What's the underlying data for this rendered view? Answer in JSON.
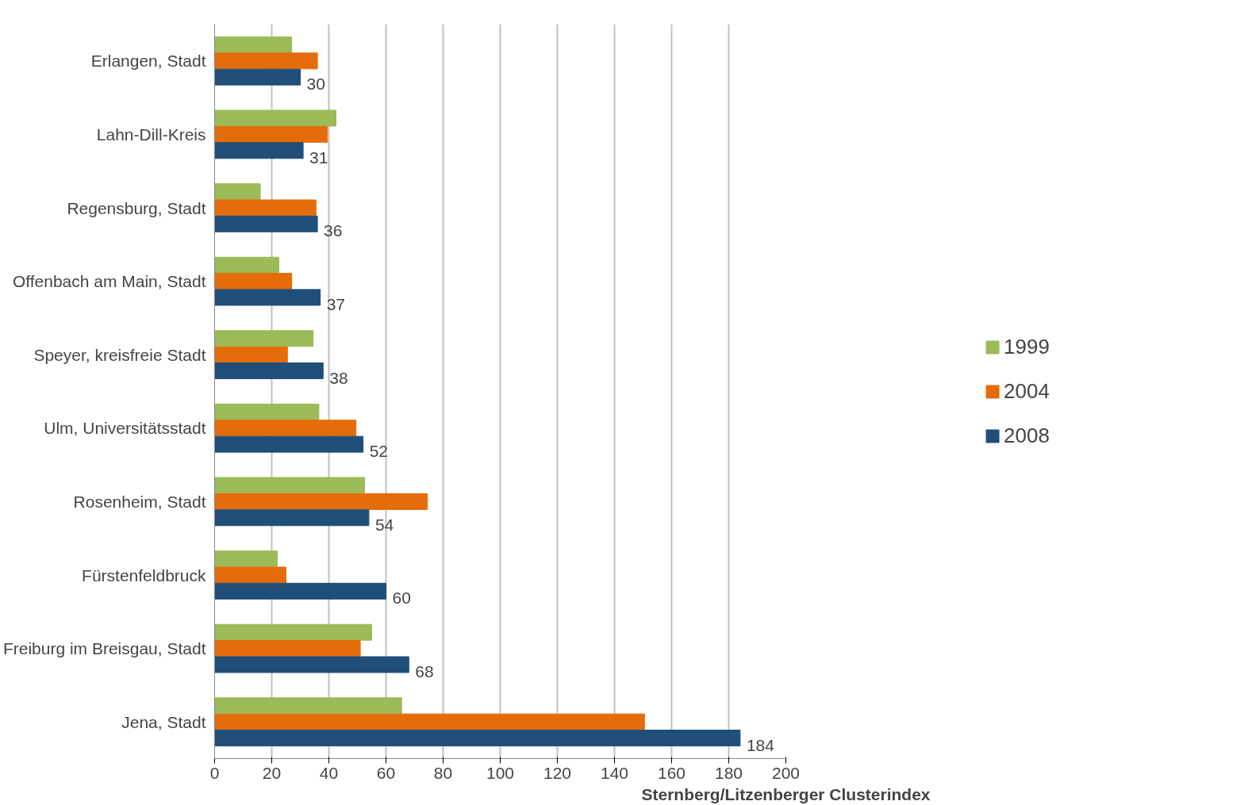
{
  "chart_data": {
    "type": "bar",
    "orientation": "horizontal",
    "xlabel": "Sternberg/Litzenberger Clusterindex",
    "categories": [
      "Erlangen, Stadt",
      "Lahn-Dill-Kreis",
      "Regensburg, Stadt",
      "Offenbach am Main, Stadt",
      "Speyer, kreisfreie Stadt",
      "Ulm, Universitätsstadt",
      "Rosenheim, Stadt",
      "Fürstenfeldbruck",
      "Freiburg im Breisgau, Stadt",
      "Jena, Stadt"
    ],
    "series": [
      {
        "name": "1999",
        "color": "#9bbb59",
        "values": [
          27,
          42.5,
          16,
          22.5,
          34.5,
          36.5,
          52.5,
          22,
          55,
          65.5
        ]
      },
      {
        "name": "2004",
        "color": "#e46c0a",
        "values": [
          36,
          39.5,
          35.5,
          27,
          25.5,
          49.5,
          74.5,
          25,
          51,
          150.5
        ]
      },
      {
        "name": "2008",
        "color": "#1f4e79",
        "values": [
          30,
          31,
          36,
          37,
          38,
          52,
          54,
          60,
          68,
          184
        ],
        "value_labels": [
          "30",
          "31",
          "36",
          "37",
          "38",
          "52",
          "54",
          "60",
          "68",
          "184"
        ]
      }
    ],
    "xlim": [
      0,
      200
    ],
    "xticks": [
      0,
      20,
      40,
      60,
      80,
      100,
      120,
      140,
      160,
      180,
      200
    ],
    "grid": "x",
    "legend": "right"
  }
}
